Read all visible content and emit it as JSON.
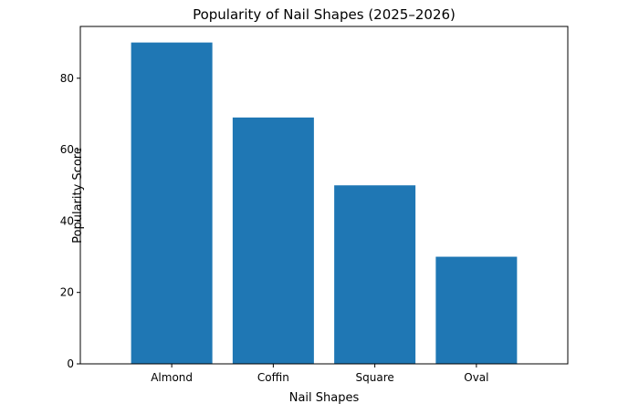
{
  "chart_data": {
    "type": "bar",
    "title": "Popularity of Nail Shapes (2025–2026)",
    "xlabel": "Nail Shapes",
    "ylabel": "Popularity Score",
    "categories": [
      "Almond",
      "Coffin",
      "Square",
      "Oval"
    ],
    "values": [
      90,
      69,
      50,
      30
    ],
    "ylim": [
      0,
      94.5
    ],
    "yticks": [
      0,
      20,
      40,
      60,
      80
    ],
    "grid": false,
    "bar_color": "#1f77b4"
  }
}
